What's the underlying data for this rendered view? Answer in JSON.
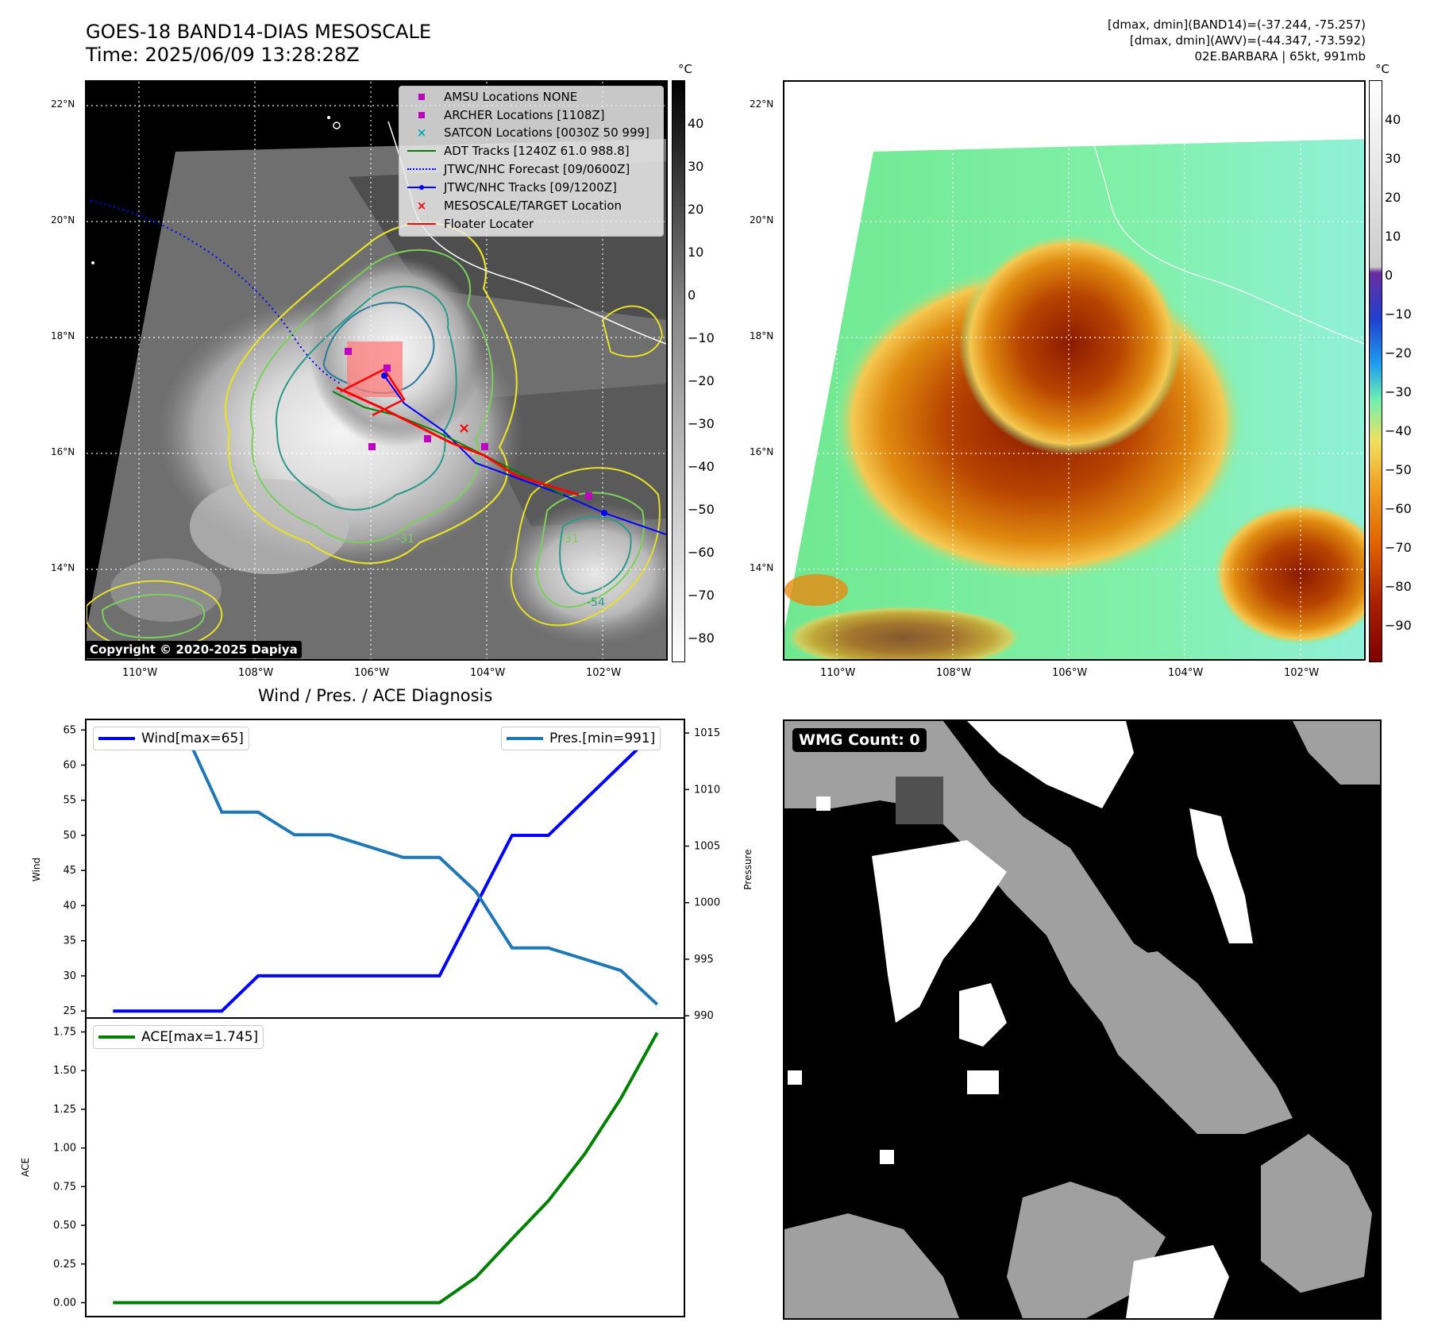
{
  "header": {
    "title": "GOES-18 BAND14-DIAS MESOSCALE",
    "time": "Time: 2025/06/09 13:28:28Z",
    "info1": "[dmax, dmin](BAND14)=(-37.244, -75.257)",
    "info2": "[dmax, dmin](AWV)=(-44.347, -73.592)",
    "info3": "02E.BARBARA | 65kt, 991mb"
  },
  "maps": {
    "lat_labels": [
      "22°N",
      "20°N",
      "18°N",
      "16°N",
      "14°N"
    ],
    "lon_labels": [
      "110°W",
      "108°W",
      "106°W",
      "104°W",
      "102°W"
    ],
    "unit": "°C",
    "left_colorbar_ticks": [
      "40",
      "30",
      "20",
      "10",
      "0",
      "−10",
      "−20",
      "−30",
      "−40",
      "−50",
      "−60",
      "−70",
      "−80"
    ],
    "right_colorbar_ticks": [
      "40",
      "30",
      "20",
      "10",
      "0",
      "−10",
      "−20",
      "−30",
      "−40",
      "−50",
      "−60",
      "−70",
      "−80",
      "−90"
    ],
    "copyright": "Copyright © 2020-2025 Dapiya",
    "contour_labels": [
      "-31",
      "-31",
      "-54"
    ],
    "legend": [
      {
        "label": "AMSU Locations NONE",
        "color": "#c000c0",
        "symbol": "square"
      },
      {
        "label": "ARCHER Locations [1108Z]",
        "color": "#c000c0",
        "symbol": "square"
      },
      {
        "label": "SATCON Locations [0030Z 50 999]",
        "color": "#00b0b0",
        "symbol": "x"
      },
      {
        "label": "ADT Tracks [1240Z 61.0 988.8]",
        "color": "#008000",
        "symbol": "line"
      },
      {
        "label": "JTWC/NHC Forecast [09/0600Z]",
        "color": "#0000ff",
        "symbol": "dotted"
      },
      {
        "label": "JTWC/NHC Tracks [09/1200Z]",
        "color": "#0000ff",
        "symbol": "linedot"
      },
      {
        "label": "MESOSCALE/TARGET Location",
        "color": "#ff0000",
        "symbol": "x"
      },
      {
        "label": "Floater Locater",
        "color": "#ff0000",
        "symbol": "line"
      }
    ]
  },
  "wmg": {
    "label": "WMG Count: 0"
  },
  "chart_data": [
    {
      "type": "line",
      "title": "Wind / Pres. / ACE Diagnosis",
      "ylabel": "Wind",
      "ylabel_right": "Pressure",
      "x": [
        0,
        1,
        2,
        3,
        4,
        5,
        6,
        7,
        8,
        9,
        10,
        11,
        12,
        13,
        14,
        15
      ],
      "series": [
        {
          "name": "Wind[max=65]",
          "axis": "left",
          "color": "#0000ff",
          "values": [
            25,
            25,
            25,
            25,
            30,
            30,
            30,
            30,
            30,
            30,
            40,
            50,
            50,
            55,
            60,
            65
          ]
        },
        {
          "name": "Pres.[min=991]",
          "axis": "right",
          "color": "#1f77b4",
          "values": [
            1015,
            1015,
            1015,
            1008,
            1008,
            1006,
            1006,
            1005,
            1004,
            1004,
            1001,
            996,
            996,
            995,
            994,
            991
          ]
        }
      ],
      "ylim": [
        24,
        66.5
      ],
      "ylim_right": [
        989.8,
        1016.2
      ],
      "yticks": [
        25,
        30,
        35,
        40,
        45,
        50,
        55,
        60,
        65
      ],
      "yticks_right": [
        990,
        995,
        1000,
        1005,
        1010,
        1015
      ]
    },
    {
      "type": "line",
      "ylabel": "ACE",
      "x": [
        0,
        1,
        2,
        3,
        4,
        5,
        6,
        7,
        8,
        9,
        10,
        11,
        12,
        13,
        14,
        15
      ],
      "series": [
        {
          "name": "ACE[max=1.745]",
          "color": "#008000",
          "values": [
            0,
            0,
            0,
            0,
            0,
            0,
            0,
            0,
            0,
            0,
            0.163,
            0.413,
            0.658,
            0.96,
            1.321,
            1.745
          ]
        }
      ],
      "ylim": [
        -0.09,
        1.84
      ],
      "yticks": [
        "0.00",
        "0.25",
        "0.50",
        "0.75",
        "1.00",
        "1.25",
        "1.50",
        "1.75"
      ]
    }
  ]
}
